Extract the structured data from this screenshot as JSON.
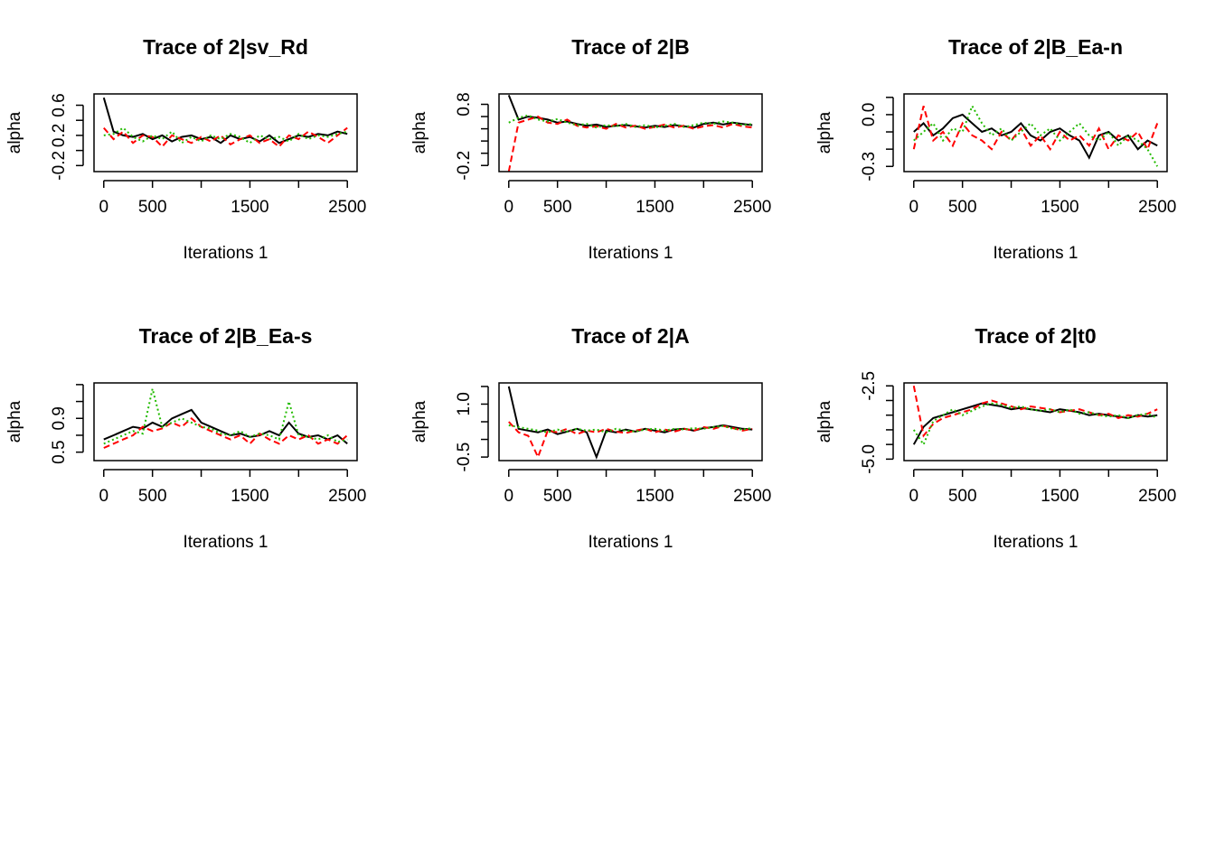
{
  "chart_data": [
    {
      "type": "line",
      "title": "Trace of 2|sv_Rd",
      "x_label": "Iterations 1",
      "y_label": "alpha",
      "x": [
        0,
        100,
        200,
        300,
        400,
        500,
        600,
        700,
        800,
        900,
        1000,
        1100,
        1200,
        1300,
        1400,
        1500,
        1600,
        1700,
        1800,
        1900,
        2000,
        2100,
        2200,
        2300,
        2400,
        2500
      ],
      "xlim": [
        -100,
        2600
      ],
      "xticks": [
        0,
        500,
        1500,
        2500
      ],
      "xticks_unlabeled": [
        1000,
        2000
      ],
      "ylim": [
        -0.28,
        0.75
      ],
      "yticks": [
        -0.2,
        0.2,
        0.6
      ],
      "yticks_unlabeled": [
        0,
        0.4
      ],
      "series": [
        {
          "color": "#000000",
          "dash": "solid",
          "values": [
            0.7,
            0.25,
            0.2,
            0.18,
            0.22,
            0.15,
            0.2,
            0.12,
            0.18,
            0.2,
            0.15,
            0.18,
            0.1,
            0.2,
            0.15,
            0.18,
            0.12,
            0.2,
            0.1,
            0.15,
            0.2,
            0.18,
            0.22,
            0.2,
            0.25,
            0.22
          ]
        },
        {
          "color": "#ff0000",
          "dash": "dashed",
          "values": [
            0.3,
            0.15,
            0.25,
            0.1,
            0.2,
            0.18,
            0.05,
            0.2,
            0.15,
            0.1,
            0.18,
            0.12,
            0.2,
            0.08,
            0.15,
            0.2,
            0.1,
            0.15,
            0.05,
            0.2,
            0.15,
            0.25,
            0.18,
            0.1,
            0.2,
            0.3
          ]
        },
        {
          "color": "#22bb00",
          "dash": "dotted",
          "values": [
            0.2,
            0.22,
            0.3,
            0.18,
            0.12,
            0.2,
            0.15,
            0.25,
            0.1,
            0.18,
            0.12,
            0.2,
            0.15,
            0.22,
            0.18,
            0.1,
            0.2,
            0.15,
            0.18,
            0.12,
            0.22,
            0.15,
            0.2,
            0.18,
            0.22,
            0.25
          ]
        }
      ]
    },
    {
      "type": "line",
      "title": "Trace of 2|B",
      "x_label": "Iterations 1",
      "y_label": "alpha",
      "x": [
        0,
        100,
        200,
        300,
        400,
        500,
        600,
        700,
        800,
        900,
        1000,
        1100,
        1200,
        1300,
        1400,
        1500,
        1600,
        1700,
        1800,
        1900,
        2000,
        2100,
        2200,
        2300,
        2400,
        2500
      ],
      "xlim": [
        -100,
        2600
      ],
      "xticks": [
        0,
        500,
        1500,
        2500
      ],
      "xticks_unlabeled": [
        1000,
        2000
      ],
      "ylim": [
        -0.3,
        0.97
      ],
      "yticks": [
        -0.2,
        0.8
      ],
      "yticks_unlabeled": [
        0,
        0.2,
        0.4,
        0.6
      ],
      "series": [
        {
          "color": "#000000",
          "dash": "solid",
          "values": [
            0.95,
            0.55,
            0.6,
            0.58,
            0.55,
            0.5,
            0.52,
            0.48,
            0.45,
            0.47,
            0.43,
            0.45,
            0.46,
            0.44,
            0.42,
            0.45,
            0.43,
            0.46,
            0.44,
            0.42,
            0.48,
            0.5,
            0.47,
            0.5,
            0.48,
            0.46
          ]
        },
        {
          "color": "#ff0000",
          "dash": "dashed",
          "values": [
            -0.3,
            0.5,
            0.55,
            0.6,
            0.5,
            0.48,
            0.55,
            0.45,
            0.42,
            0.44,
            0.4,
            0.48,
            0.42,
            0.45,
            0.4,
            0.43,
            0.47,
            0.42,
            0.45,
            0.4,
            0.44,
            0.46,
            0.42,
            0.48,
            0.44,
            0.42
          ]
        },
        {
          "color": "#22bb00",
          "dash": "dotted",
          "values": [
            0.5,
            0.58,
            0.62,
            0.55,
            0.52,
            0.56,
            0.5,
            0.46,
            0.48,
            0.42,
            0.46,
            0.44,
            0.48,
            0.43,
            0.46,
            0.42,
            0.45,
            0.48,
            0.43,
            0.46,
            0.5,
            0.48,
            0.52,
            0.5,
            0.46,
            0.48
          ]
        }
      ]
    },
    {
      "type": "line",
      "title": "Trace of 2|B_Ea-n",
      "x_label": "Iterations 1",
      "y_label": "alpha",
      "x": [
        0,
        100,
        200,
        300,
        400,
        500,
        600,
        700,
        800,
        900,
        1000,
        1100,
        1200,
        1300,
        1400,
        1500,
        1600,
        1700,
        1800,
        1900,
        2000,
        2100,
        2200,
        2300,
        2400,
        2500
      ],
      "xlim": [
        -100,
        2600
      ],
      "xticks": [
        0,
        500,
        1500,
        2500
      ],
      "xticks_unlabeled": [
        1000,
        2000
      ],
      "ylim": [
        -0.33,
        0.12
      ],
      "yticks": [
        {
          "value": 0,
          "label": "0.0"
        },
        -0.3
      ],
      "yticks_unlabeled": [
        0.1,
        -0.1,
        -0.2
      ],
      "series": [
        {
          "color": "#000000",
          "dash": "solid",
          "values": [
            -0.1,
            -0.05,
            -0.12,
            -0.08,
            -0.02,
            0.0,
            -0.05,
            -0.1,
            -0.08,
            -0.12,
            -0.1,
            -0.05,
            -0.12,
            -0.15,
            -0.1,
            -0.08,
            -0.12,
            -0.15,
            -0.25,
            -0.12,
            -0.1,
            -0.15,
            -0.12,
            -0.2,
            -0.15,
            -0.18
          ]
        },
        {
          "color": "#ff0000",
          "dash": "dashed",
          "values": [
            -0.2,
            0.05,
            -0.15,
            -0.1,
            -0.18,
            -0.05,
            -0.12,
            -0.15,
            -0.2,
            -0.1,
            -0.15,
            -0.08,
            -0.18,
            -0.12,
            -0.2,
            -0.1,
            -0.15,
            -0.12,
            -0.18,
            -0.08,
            -0.2,
            -0.12,
            -0.15,
            -0.1,
            -0.2,
            -0.05
          ]
        },
        {
          "color": "#22bb00",
          "dash": "dotted",
          "values": [
            -0.15,
            -0.1,
            -0.05,
            -0.15,
            -0.08,
            -0.1,
            0.05,
            -0.05,
            -0.12,
            -0.08,
            -0.15,
            -0.1,
            -0.05,
            -0.12,
            -0.08,
            -0.15,
            -0.1,
            -0.05,
            -0.12,
            -0.15,
            -0.1,
            -0.18,
            -0.12,
            -0.15,
            -0.2,
            -0.3
          ]
        }
      ]
    },
    {
      "type": "line",
      "title": "Trace of 2|B_Ea-s",
      "x_label": "Iterations 1",
      "y_label": "alpha",
      "x": [
        0,
        100,
        200,
        300,
        400,
        500,
        600,
        700,
        800,
        900,
        1000,
        1100,
        1200,
        1300,
        1400,
        1500,
        1600,
        1700,
        1800,
        1900,
        2000,
        2100,
        2200,
        2300,
        2400,
        2500
      ],
      "xlim": [
        -100,
        2600
      ],
      "xticks": [
        0,
        500,
        1500,
        2500
      ],
      "xticks_unlabeled": [
        1000,
        2000
      ],
      "ylim": [
        0.4,
        1.32
      ],
      "yticks": [
        0.5,
        0.9
      ],
      "yticks_unlabeled": [
        0.7,
        1.1,
        1.3
      ],
      "series": [
        {
          "color": "#000000",
          "dash": "solid",
          "values": [
            0.65,
            0.7,
            0.75,
            0.8,
            0.78,
            0.85,
            0.8,
            0.9,
            0.95,
            1.0,
            0.85,
            0.8,
            0.75,
            0.7,
            0.72,
            0.68,
            0.7,
            0.75,
            0.7,
            0.85,
            0.72,
            0.68,
            0.7,
            0.65,
            0.7,
            0.6
          ]
        },
        {
          "color": "#ff0000",
          "dash": "dashed",
          "values": [
            0.55,
            0.6,
            0.65,
            0.7,
            0.8,
            0.75,
            0.78,
            0.85,
            0.8,
            0.9,
            0.8,
            0.75,
            0.7,
            0.65,
            0.7,
            0.6,
            0.72,
            0.65,
            0.6,
            0.7,
            0.65,
            0.7,
            0.6,
            0.65,
            0.6,
            0.7
          ]
        },
        {
          "color": "#22bb00",
          "dash": "dotted",
          "values": [
            0.6,
            0.65,
            0.7,
            0.75,
            0.72,
            1.25,
            0.8,
            0.85,
            0.9,
            0.85,
            0.8,
            0.78,
            0.72,
            0.7,
            0.75,
            0.68,
            0.72,
            0.7,
            0.65,
            1.1,
            0.7,
            0.68,
            0.65,
            0.7,
            0.62,
            0.65
          ]
        }
      ]
    },
    {
      "type": "line",
      "title": "Trace of 2|A",
      "x_label": "Iterations 1",
      "y_label": "alpha",
      "x": [
        0,
        100,
        200,
        300,
        400,
        500,
        600,
        700,
        800,
        900,
        1000,
        1100,
        1200,
        1300,
        1400,
        1500,
        1600,
        1700,
        1800,
        1900,
        2000,
        2100,
        2200,
        2300,
        2400,
        2500
      ],
      "xlim": [
        -100,
        2600
      ],
      "xticks": [
        0,
        500,
        1500,
        2500
      ],
      "xticks_unlabeled": [
        1000,
        2000
      ],
      "ylim": [
        -0.6,
        1.6
      ],
      "yticks": [
        {
          "value": 1,
          "label": "1.0"
        },
        -0.5
      ],
      "yticks_unlabeled": [
        1.5,
        0.5,
        0
      ],
      "series": [
        {
          "color": "#000000",
          "dash": "solid",
          "values": [
            1.5,
            0.3,
            0.25,
            0.2,
            0.28,
            0.15,
            0.22,
            0.3,
            0.2,
            -0.5,
            0.25,
            0.2,
            0.28,
            0.22,
            0.3,
            0.25,
            0.2,
            0.28,
            0.3,
            0.25,
            0.32,
            0.35,
            0.4,
            0.35,
            0.3,
            0.28
          ]
        },
        {
          "color": "#ff0000",
          "dash": "dashed",
          "values": [
            0.5,
            0.2,
            0.1,
            -0.5,
            0.25,
            0.2,
            0.3,
            0.15,
            0.25,
            0.2,
            0.3,
            0.22,
            0.18,
            0.25,
            0.3,
            0.2,
            0.28,
            0.22,
            0.3,
            0.25,
            0.35,
            0.3,
            0.38,
            0.32,
            0.25,
            0.3
          ]
        },
        {
          "color": "#22bb00",
          "dash": "dotted",
          "values": [
            0.4,
            0.35,
            0.3,
            0.25,
            0.2,
            0.28,
            0.22,
            0.3,
            0.25,
            0.28,
            0.2,
            0.3,
            0.25,
            0.22,
            0.28,
            0.3,
            0.25,
            0.3,
            0.28,
            0.32,
            0.3,
            0.35,
            0.38,
            0.3,
            0.28,
            0.32
          ]
        }
      ]
    },
    {
      "type": "line",
      "title": "Trace of 2|t0",
      "x_label": "Iterations 1",
      "y_label": "alpha",
      "x": [
        0,
        100,
        200,
        300,
        400,
        500,
        600,
        700,
        800,
        900,
        1000,
        1100,
        1200,
        1300,
        1400,
        1500,
        1600,
        1700,
        1800,
        1900,
        2000,
        2100,
        2200,
        2300,
        2400,
        2500
      ],
      "xlim": [
        -100,
        2600
      ],
      "xticks": [
        0,
        500,
        1500,
        2500
      ],
      "xticks_unlabeled": [
        1000,
        2000
      ],
      "ylim": [
        -5.05,
        -2.4
      ],
      "yticks": [
        -2.5,
        {
          "value": -5,
          "label": "-5.0"
        }
      ],
      "yticks_unlabeled": [
        -3,
        -3.5,
        -4,
        -4.5
      ],
      "series": [
        {
          "color": "#000000",
          "dash": "solid",
          "values": [
            -4.5,
            -3.9,
            -3.6,
            -3.5,
            -3.4,
            -3.3,
            -3.2,
            -3.1,
            -3.15,
            -3.2,
            -3.3,
            -3.25,
            -3.3,
            -3.35,
            -3.4,
            -3.3,
            -3.35,
            -3.4,
            -3.5,
            -3.45,
            -3.5,
            -3.55,
            -3.6,
            -3.5,
            -3.55,
            -3.5
          ]
        },
        {
          "color": "#ff0000",
          "dash": "dashed",
          "values": [
            -2.5,
            -4.2,
            -3.8,
            -3.6,
            -3.5,
            -3.4,
            -3.3,
            -3.1,
            -3.0,
            -3.1,
            -3.2,
            -3.3,
            -3.2,
            -3.25,
            -3.3,
            -3.4,
            -3.35,
            -3.3,
            -3.4,
            -3.5,
            -3.45,
            -3.6,
            -3.5,
            -3.55,
            -3.45,
            -3.3
          ]
        },
        {
          "color": "#22bb00",
          "dash": "dotted",
          "values": [
            -4.0,
            -4.5,
            -3.7,
            -3.5,
            -3.3,
            -3.5,
            -3.35,
            -3.2,
            -3.1,
            -3.15,
            -3.25,
            -3.2,
            -3.3,
            -3.35,
            -3.3,
            -3.4,
            -3.3,
            -3.45,
            -3.4,
            -3.5,
            -3.55,
            -3.5,
            -3.6,
            -3.5,
            -3.45,
            -3.6
          ]
        }
      ]
    }
  ]
}
